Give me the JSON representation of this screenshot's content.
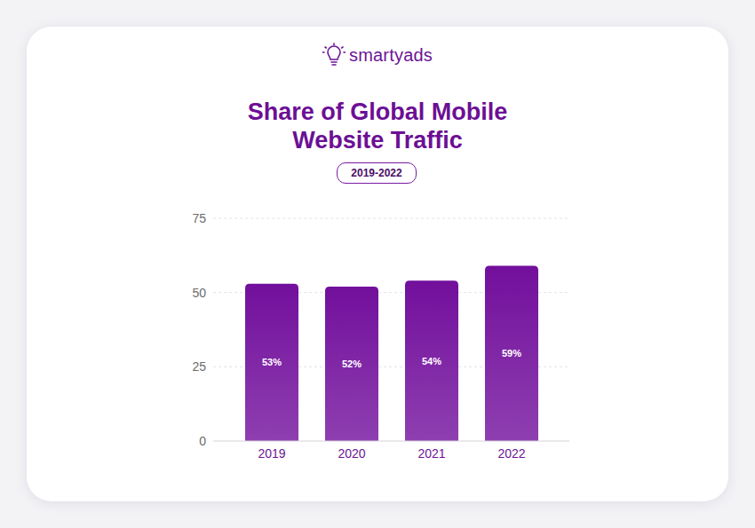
{
  "logo": "smartyads",
  "chart_data": {
    "type": "bar",
    "title": "Share of Global Mobile Website Traffic",
    "subtitle": "2019-2022",
    "categories": [
      "2019",
      "2020",
      "2021",
      "2022"
    ],
    "values": [
      53,
      52,
      54,
      59
    ],
    "value_labels": [
      "53%",
      "52%",
      "54%",
      "59%"
    ],
    "color": "#720f9c",
    "ylim": [
      0,
      75
    ],
    "yticks": [
      0,
      25,
      50,
      75
    ],
    "grid": true,
    "data_labels": true
  }
}
